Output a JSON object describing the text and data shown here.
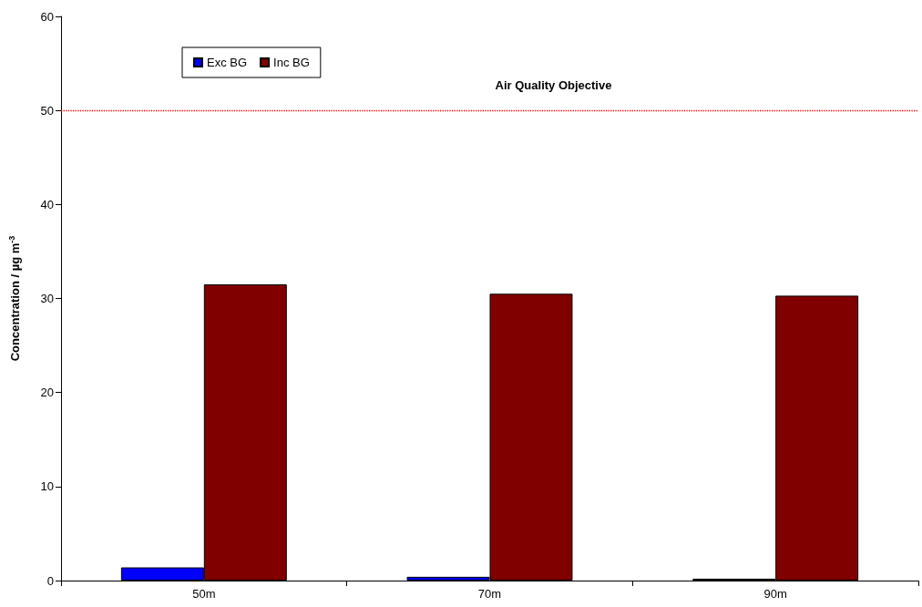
{
  "chart_data": {
    "type": "bar",
    "ylabel": "Concentration / µg m$^{-3}$",
    "categories": [
      "50m",
      "70m",
      "90m"
    ],
    "series": [
      {
        "name": "Exc BG",
        "color": "#0000ff",
        "values": [
          1.4,
          0.4,
          0.2
        ]
      },
      {
        "name": "Inc BG",
        "color": "#800000",
        "values": [
          31.5,
          30.5,
          30.3
        ]
      }
    ],
    "ylim": [
      0,
      60
    ],
    "yticks": [
      0,
      10,
      20,
      30,
      40,
      50,
      60
    ],
    "grid": false,
    "legend": "top left",
    "ref_lines": [
      {
        "axis": "y",
        "value": 50,
        "label": "Air Quality Objective",
        "color": "#ff0000",
        "line_style": "dotted"
      }
    ]
  }
}
